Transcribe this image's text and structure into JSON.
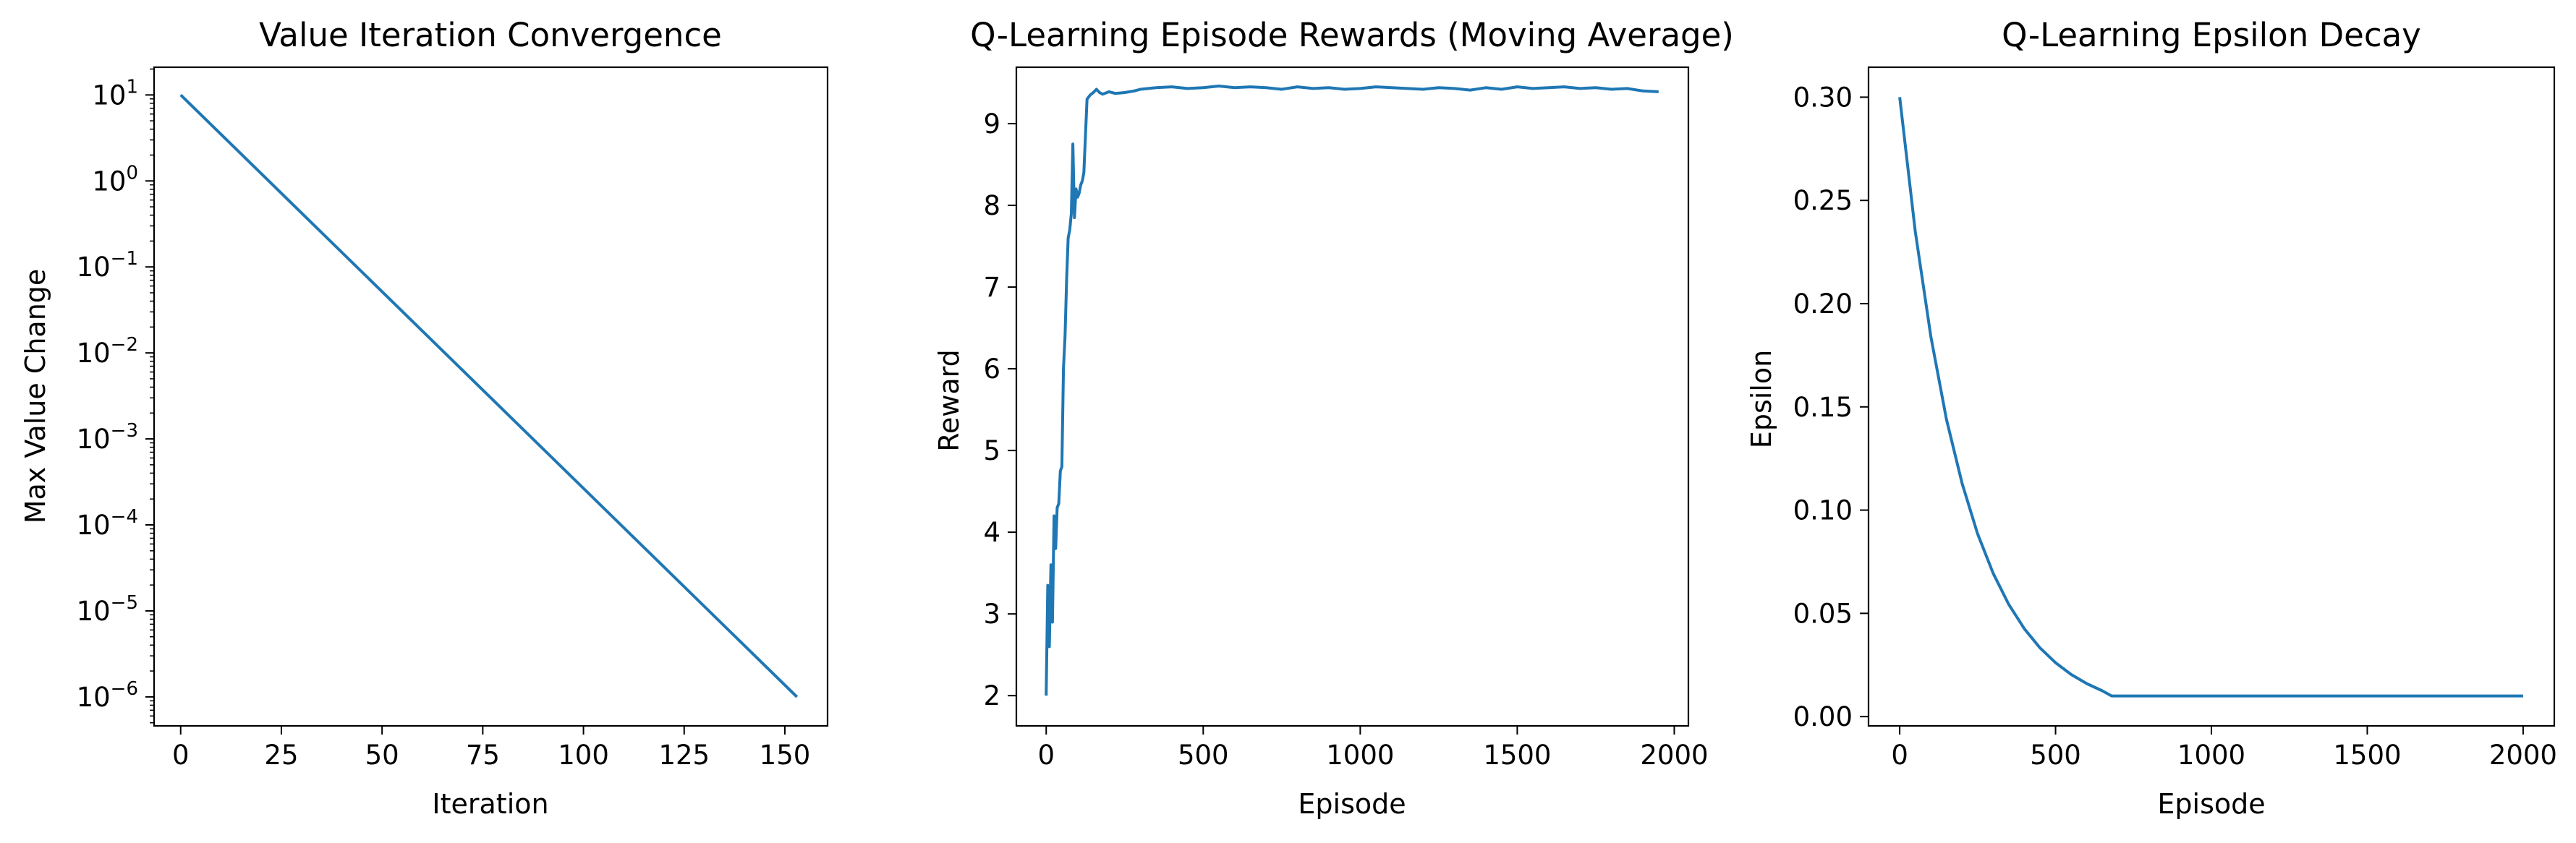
{
  "figure": {
    "background": "#ffffff",
    "line_color": "#1f77b4"
  },
  "chart_data": [
    {
      "type": "line",
      "title": "Value Iteration Convergence",
      "xlabel": "Iteration",
      "ylabel": "Max Value Change",
      "xlim": [
        -6.6,
        160.6
      ],
      "ylim": [
        4.6e-07,
        21.0
      ],
      "yscale": "log",
      "grid": false,
      "xticks": [
        0,
        25,
        50,
        75,
        100,
        125,
        150
      ],
      "xticklabels": [
        "0",
        "25",
        "50",
        "75",
        "100",
        "125",
        "150"
      ],
      "yticks": [
        {
          "base": "10",
          "exp": "1",
          "value": 10
        },
        {
          "base": "10",
          "exp": "0",
          "value": 1
        },
        {
          "base": "10",
          "exp": "−1",
          "value": 0.1
        },
        {
          "base": "10",
          "exp": "−2",
          "value": 0.01
        },
        {
          "base": "10",
          "exp": "−3",
          "value": 0.001
        },
        {
          "base": "10",
          "exp": "−4",
          "value": 0.0001
        },
        {
          "base": "10",
          "exp": "−5",
          "value": 1e-05
        },
        {
          "base": "10",
          "exp": "−6",
          "value": 1e-06
        }
      ],
      "x": [
        0,
        153
      ],
      "y": [
        10,
        1e-06
      ]
    },
    {
      "type": "line",
      "title": "Q-Learning Episode Rewards (Moving Average)",
      "xlabel": "Episode",
      "ylabel": "Reward",
      "xlim": [
        -95,
        2045
      ],
      "ylim": [
        1.63,
        9.69
      ],
      "grid": false,
      "xticks": [
        0,
        500,
        1000,
        1500,
        2000
      ],
      "xticklabels": [
        "0",
        "500",
        "1000",
        "1500",
        "2000"
      ],
      "yticks": [
        2,
        3,
        4,
        5,
        6,
        7,
        8,
        9
      ],
      "yticklabels": [
        "2",
        "3",
        "4",
        "5",
        "6",
        "7",
        "8",
        "9"
      ],
      "x": [
        0,
        5,
        10,
        15,
        20,
        25,
        30,
        35,
        40,
        45,
        50,
        55,
        60,
        65,
        70,
        75,
        80,
        85,
        90,
        95,
        100,
        105,
        110,
        115,
        120,
        130,
        140,
        150,
        160,
        165,
        170,
        180,
        200,
        220,
        250,
        280,
        300,
        350,
        400,
        450,
        500,
        550,
        600,
        650,
        700,
        750,
        800,
        850,
        900,
        950,
        1000,
        1050,
        1100,
        1150,
        1200,
        1250,
        1300,
        1350,
        1400,
        1450,
        1500,
        1550,
        1600,
        1650,
        1700,
        1750,
        1800,
        1850,
        1900,
        1950
      ],
      "values": [
        2.0,
        3.35,
        2.6,
        3.6,
        2.9,
        4.2,
        3.8,
        4.3,
        4.35,
        4.75,
        4.8,
        6.0,
        6.4,
        7.1,
        7.6,
        7.7,
        7.9,
        8.75,
        7.85,
        8.2,
        8.1,
        8.15,
        8.25,
        8.3,
        8.4,
        9.3,
        9.35,
        9.38,
        9.42,
        9.4,
        9.38,
        9.36,
        9.39,
        9.37,
        9.38,
        9.4,
        9.42,
        9.44,
        9.45,
        9.43,
        9.44,
        9.46,
        9.44,
        9.45,
        9.44,
        9.42,
        9.45,
        9.43,
        9.44,
        9.42,
        9.43,
        9.45,
        9.44,
        9.43,
        9.42,
        9.44,
        9.43,
        9.41,
        9.44,
        9.42,
        9.45,
        9.43,
        9.44,
        9.45,
        9.43,
        9.44,
        9.42,
        9.43,
        9.4,
        9.39
      ]
    },
    {
      "type": "line",
      "title": "Q-Learning Epsilon Decay",
      "xlabel": "Episode",
      "ylabel": "Epsilon",
      "xlim": [
        -100,
        2100
      ],
      "ylim": [
        -0.0045,
        0.3145
      ],
      "grid": false,
      "xticks": [
        0,
        500,
        1000,
        1500,
        2000
      ],
      "xticklabels": [
        "0",
        "500",
        "1000",
        "1500",
        "2000"
      ],
      "yticks": [
        0,
        0.05,
        0.1,
        0.15,
        0.2,
        0.25,
        0.3
      ],
      "yticklabels": [
        "0.00",
        "0.05",
        "0.10",
        "0.15",
        "0.20",
        "0.25",
        "0.30"
      ],
      "x": [
        0,
        50,
        100,
        150,
        200,
        250,
        300,
        350,
        400,
        450,
        500,
        550,
        600,
        650,
        680,
        700,
        1000,
        1500,
        2000
      ],
      "values": [
        0.3,
        0.235,
        0.184,
        0.144,
        0.113,
        0.0885,
        0.0693,
        0.0543,
        0.0425,
        0.0333,
        0.0261,
        0.0204,
        0.016,
        0.0125,
        0.01,
        0.01,
        0.01,
        0.01,
        0.01
      ]
    }
  ]
}
